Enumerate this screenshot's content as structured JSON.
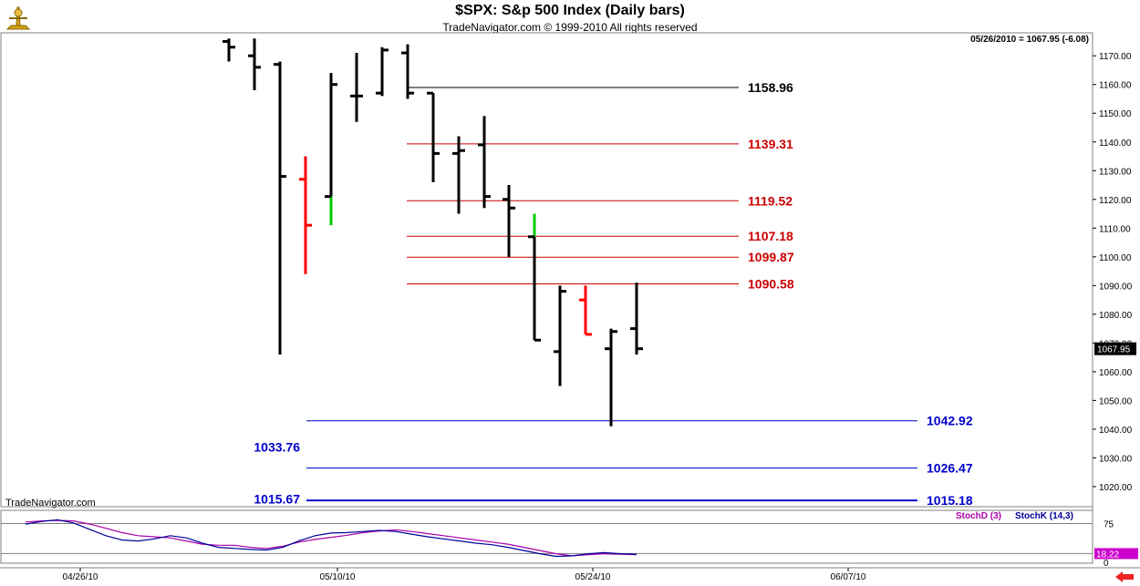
{
  "header": {
    "title": "$SPX:  S&p 500 Index  (Daily bars)",
    "subtitle": "TradeNavigator.com © 1999-2010 All rights reserved",
    "readout": "05/26/2010 = 1067.95 (-6.08)",
    "watermark": "TradeNavigator.com"
  },
  "indicator": {
    "stochd_label": "StochD (3)",
    "stochk_label": "StochK (14,3)",
    "level_label": "75",
    "current_value": "18.22",
    "zero_label": "0",
    "stochd_color": "#aa00aa",
    "stochk_color": "#000099"
  },
  "price_tag": "1067.95",
  "colors": {
    "bar_default": "#000000",
    "bar_down_highlight": "#ff0000",
    "bar_up_highlight": "#00cc00",
    "resistance": "#cc0000",
    "support": "#0000cc"
  },
  "chart_data": {
    "type": "ohlc",
    "title": "$SPX:  S&p 500 Index  (Daily bars)",
    "ylim": [
      1013,
      1178
    ],
    "yticks": [
      1020,
      1030,
      1040,
      1050,
      1060,
      1070,
      1080,
      1090,
      1100,
      1110,
      1120,
      1130,
      1140,
      1150,
      1160,
      1170
    ],
    "ytick_labels": [
      "1020.00",
      "1030.00",
      "1040.00",
      "1050.00",
      "1060.00",
      "1070.00",
      "1080.00",
      "1090.00",
      "1100.00",
      "1110.00",
      "1120.00",
      "1130.00",
      "1140.00",
      "1150.00",
      "1160.00",
      "1170.00"
    ],
    "xtick_labels": [
      "04/26/10",
      "05/10/10",
      "05/24/10",
      "06/07/10"
    ],
    "bars": [
      {
        "high": 1176,
        "low": 1168,
        "open": 1175,
        "close": 1173,
        "color": "black"
      },
      {
        "high": 1176,
        "low": 1158,
        "open": 1170,
        "close": 1166,
        "color": "black"
      },
      {
        "high": 1168,
        "low": 1066,
        "open": 1167,
        "close": 1128,
        "color": "black"
      },
      {
        "high": 1135,
        "low": 1094,
        "open": 1127,
        "close": 1111,
        "color": "red"
      },
      {
        "high": 1164,
        "low": 1111,
        "open": 1121,
        "close": 1160,
        "color": "black",
        "low_segment_color": "green"
      },
      {
        "high": 1171,
        "low": 1147,
        "open": 1156,
        "close": 1156,
        "color": "black"
      },
      {
        "high": 1173,
        "low": 1156,
        "open": 1157,
        "close": 1172,
        "color": "black"
      },
      {
        "high": 1174,
        "low": 1155,
        "open": 1171,
        "close": 1157,
        "color": "black"
      },
      {
        "high": 1157,
        "low": 1126,
        "open": 1157,
        "close": 1136,
        "color": "black"
      },
      {
        "high": 1142,
        "low": 1115,
        "open": 1136,
        "close": 1137,
        "color": "black"
      },
      {
        "high": 1149,
        "low": 1117,
        "open": 1139,
        "close": 1121,
        "color": "black"
      },
      {
        "high": 1125,
        "low": 1100,
        "open": 1120,
        "close": 1117,
        "color": "black"
      },
      {
        "high": 1115,
        "low": 1071,
        "open": 1107,
        "close": 1071,
        "color": "black",
        "high_segment_color": "green"
      },
      {
        "high": 1090,
        "low": 1055,
        "open": 1067,
        "close": 1088,
        "color": "black"
      },
      {
        "high": 1090,
        "low": 1073,
        "open": 1085,
        "close": 1073,
        "color": "red"
      },
      {
        "high": 1075,
        "low": 1041,
        "open": 1068,
        "close": 1074,
        "color": "black"
      },
      {
        "high": 1091,
        "low": 1066,
        "open": 1075,
        "close": 1068,
        "color": "black"
      }
    ],
    "resistance_levels": [
      {
        "value": 1158.96,
        "label": "1158.96",
        "label_color": "#000000",
        "line_color": "#000000"
      },
      {
        "value": 1139.31,
        "label": "1139.31",
        "label_color": "#cc0000",
        "line_color": "#cc0000"
      },
      {
        "value": 1119.52,
        "label": "1119.52",
        "label_color": "#cc0000",
        "line_color": "#cc0000"
      },
      {
        "value": 1107.18,
        "label": "1107.18",
        "label_color": "#cc0000",
        "line_color": "#cc0000"
      },
      {
        "value": 1099.87,
        "label": "1099.87",
        "label_color": "#cc0000",
        "line_color": "#cc0000"
      },
      {
        "value": 1090.58,
        "label": "1090.58",
        "label_color": "#cc0000",
        "line_color": "#cc0000"
      }
    ],
    "support_levels": [
      {
        "value": 1042.92,
        "label": "1042.92",
        "label_side": "right"
      },
      {
        "value": 1033.76,
        "label": "1033.76",
        "label_side": "left"
      },
      {
        "value": 1026.47,
        "label": "1026.47",
        "label_side": "right"
      },
      {
        "value": 1015.18,
        "label": "1015.18",
        "label_side": "right"
      },
      {
        "value": 1015.67,
        "label": "1015.67",
        "label_side": "left"
      }
    ],
    "stoch_ylim": [
      0,
      100
    ],
    "stoch_levels": [
      75,
      18.22
    ],
    "stochD": [
      78,
      80,
      81,
      80,
      74,
      66,
      58,
      52,
      50,
      48,
      42,
      36,
      34,
      34,
      30,
      28,
      32,
      40,
      45,
      49,
      53,
      58,
      61,
      63,
      60,
      56,
      52,
      48,
      44,
      40,
      36,
      30,
      24,
      18,
      14,
      16,
      18,
      17,
      16
    ],
    "stochK": [
      74,
      79,
      82,
      76,
      64,
      52,
      44,
      42,
      46,
      52,
      48,
      38,
      30,
      28,
      26,
      25,
      30,
      42,
      52,
      57,
      58,
      60,
      62,
      60,
      55,
      50,
      46,
      42,
      38,
      35,
      30,
      24,
      18,
      13,
      14,
      18,
      20,
      18,
      17
    ]
  }
}
